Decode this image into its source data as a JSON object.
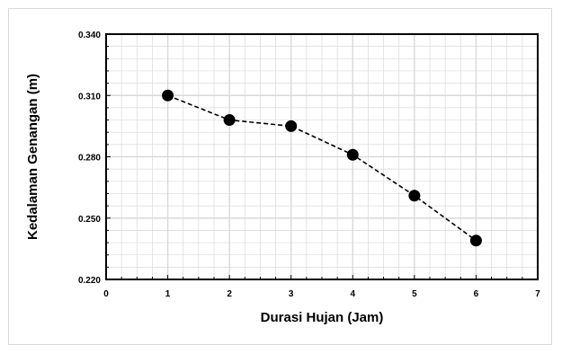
{
  "chart_data": {
    "type": "line",
    "title": "",
    "xlabel": "Durasi Hujan  (Jam)",
    "ylabel": "Kedalaman Genangan (m)",
    "xlim": [
      0,
      7
    ],
    "ylim": [
      0.22,
      0.34
    ],
    "x_ticks": [
      "0",
      "1",
      "2",
      "3",
      "4",
      "5",
      "6",
      "7"
    ],
    "y_ticks": [
      "0.220",
      "0.250",
      "0.280",
      "0.310",
      "0.340"
    ],
    "grid": true,
    "line_style": "dashed",
    "marker": "circle",
    "series": [
      {
        "x": [
          1,
          2,
          3,
          4,
          5,
          6
        ],
        "y": [
          0.31,
          0.298,
          0.295,
          0.281,
          0.261,
          0.239
        ]
      }
    ],
    "colors": {
      "line": "#000000",
      "marker": "#000000",
      "grid": "#d9d9d9",
      "plot_border": "#000000"
    }
  }
}
